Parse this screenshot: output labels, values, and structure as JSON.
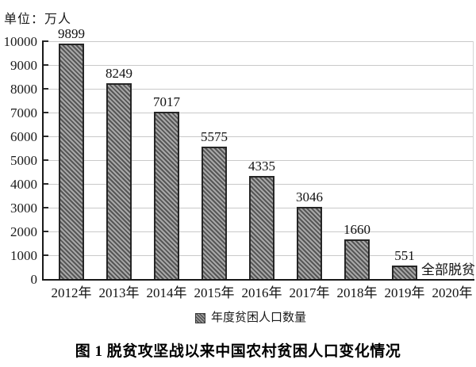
{
  "unit_label": "单位：万人",
  "caption": "图 1  脱贫攻坚战以来中国农村贫困人口变化情况",
  "legend": {
    "swatch": "hatched-gray-square",
    "label": "年度贫困人口数量"
  },
  "chart_data": {
    "type": "bar",
    "title": "图 1  脱贫攻坚战以来中国农村贫困人口变化情况",
    "unit": "单位：万人",
    "categories": [
      "2012年",
      "2013年",
      "2014年",
      "2015年",
      "2016年",
      "2017年",
      "2018年",
      "2019年",
      "2020年"
    ],
    "values": [
      9899,
      8249,
      7017,
      5575,
      4335,
      3046,
      1660,
      551,
      null
    ],
    "data_labels": [
      "9899",
      "8249",
      "7017",
      "5575",
      "4335",
      "3046",
      "1660",
      "551",
      "全部脱贫"
    ],
    "annotation_for_last_category": "全部脱贫",
    "ylabel": "万人",
    "xlabel": "",
    "ylim": [
      0,
      10000
    ],
    "ytick_labels": [
      "0",
      "1000",
      "2000",
      "3000",
      "4000",
      "5000",
      "6000",
      "7000",
      "8000",
      "9000",
      "10000"
    ],
    "grid": true,
    "legend_position": "bottom",
    "legend_entries": [
      "年度贫困人口数量"
    ],
    "colors": {
      "bar_fill_base": "#a8a8a8",
      "bar_hatch": "#565656",
      "bar_border": "#262626",
      "gridline": "#c9c9c9",
      "axis": "#1a1a1a",
      "text": "#111111",
      "background": "#ffffff"
    }
  }
}
